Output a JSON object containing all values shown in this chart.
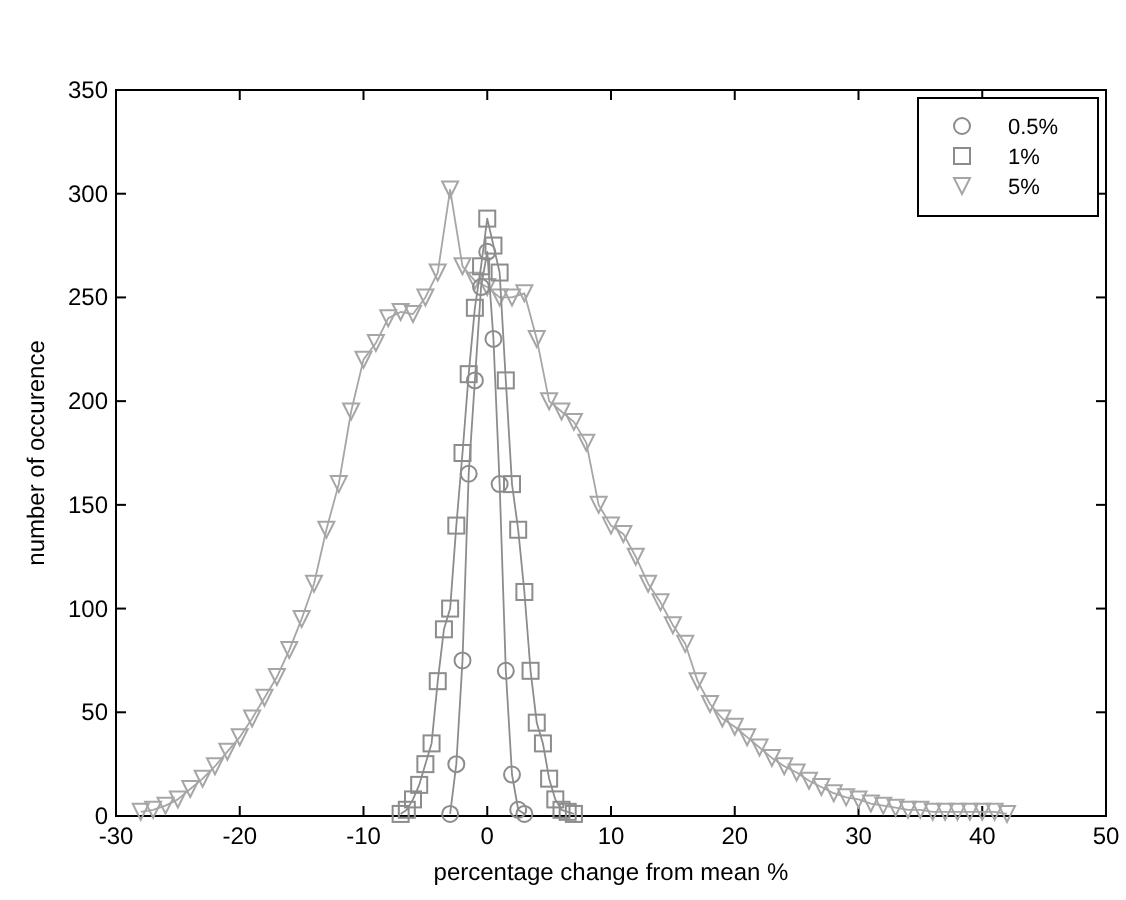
{
  "chart_data": {
    "type": "line",
    "xlabel": "percentage change from mean %",
    "ylabel": "number of occurence",
    "xlim": [
      -30,
      50
    ],
    "xticks": [
      -30,
      -20,
      -10,
      0,
      10,
      20,
      30,
      40,
      50
    ],
    "ylim": [
      0,
      350
    ],
    "yticks": [
      0,
      50,
      100,
      150,
      200,
      250,
      300,
      350
    ],
    "grid": false,
    "legend": "top right",
    "line_style": "solid",
    "series": [
      {
        "name": "0.5%",
        "color": "#8c8c8c",
        "marker": "circle",
        "x": [
          -3,
          -2.5,
          -2,
          -1.5,
          -1,
          -0.5,
          0,
          0.5,
          1,
          1.5,
          2,
          2.5,
          3
        ],
        "values": [
          1,
          25,
          75,
          165,
          210,
          255,
          272,
          230,
          160,
          70,
          20,
          3,
          1
        ]
      },
      {
        "name": "1%",
        "color": "#8c8c8c",
        "marker": "square",
        "x": [
          -7,
          -6.5,
          -6,
          -5.5,
          -5,
          -4.5,
          -4,
          -3.5,
          -3,
          -2.5,
          -2,
          -1.5,
          -1,
          -0.5,
          0,
          0.5,
          1,
          1.5,
          2,
          2.5,
          3,
          3.5,
          4,
          4.5,
          5,
          5.5,
          6,
          6.5,
          7
        ],
        "values": [
          1,
          3,
          8,
          15,
          25,
          35,
          65,
          90,
          100,
          140,
          175,
          213,
          245,
          265,
          288,
          275,
          262,
          210,
          160,
          138,
          108,
          70,
          45,
          35,
          18,
          8,
          3,
          2,
          1
        ]
      },
      {
        "name": "5%",
        "color": "#a6a6a6",
        "marker": "triangle",
        "x": [
          -28,
          -27,
          -26,
          -25,
          -24,
          -23,
          -22,
          -21,
          -20,
          -19,
          -18,
          -17,
          -16,
          -15,
          -14,
          -13,
          -12,
          -11,
          -10,
          -9,
          -8,
          -7,
          -6,
          -5,
          -4,
          -3,
          -2,
          -1,
          0,
          1,
          2,
          3,
          4,
          5,
          6,
          7,
          8,
          9,
          10,
          11,
          12,
          13,
          14,
          15,
          16,
          17,
          18,
          19,
          20,
          21,
          22,
          23,
          24,
          25,
          26,
          27,
          28,
          29,
          30,
          31,
          32,
          33,
          34,
          35,
          36,
          37,
          38,
          39,
          40,
          41,
          42
        ],
        "values": [
          2,
          3,
          5,
          8,
          13,
          18,
          24,
          31,
          38,
          47,
          57,
          67,
          80,
          95,
          112,
          138,
          160,
          195,
          220,
          228,
          240,
          243,
          242,
          250,
          262,
          302,
          265,
          258,
          255,
          250,
          250,
          252,
          230,
          200,
          195,
          190,
          180,
          150,
          140,
          136,
          125,
          112,
          103,
          92,
          83,
          65,
          54,
          47,
          43,
          38,
          33,
          28,
          24,
          21,
          17,
          14,
          11,
          9,
          8,
          6,
          5,
          4,
          3,
          3,
          2,
          2,
          2,
          2,
          2,
          2,
          1
        ]
      }
    ]
  }
}
